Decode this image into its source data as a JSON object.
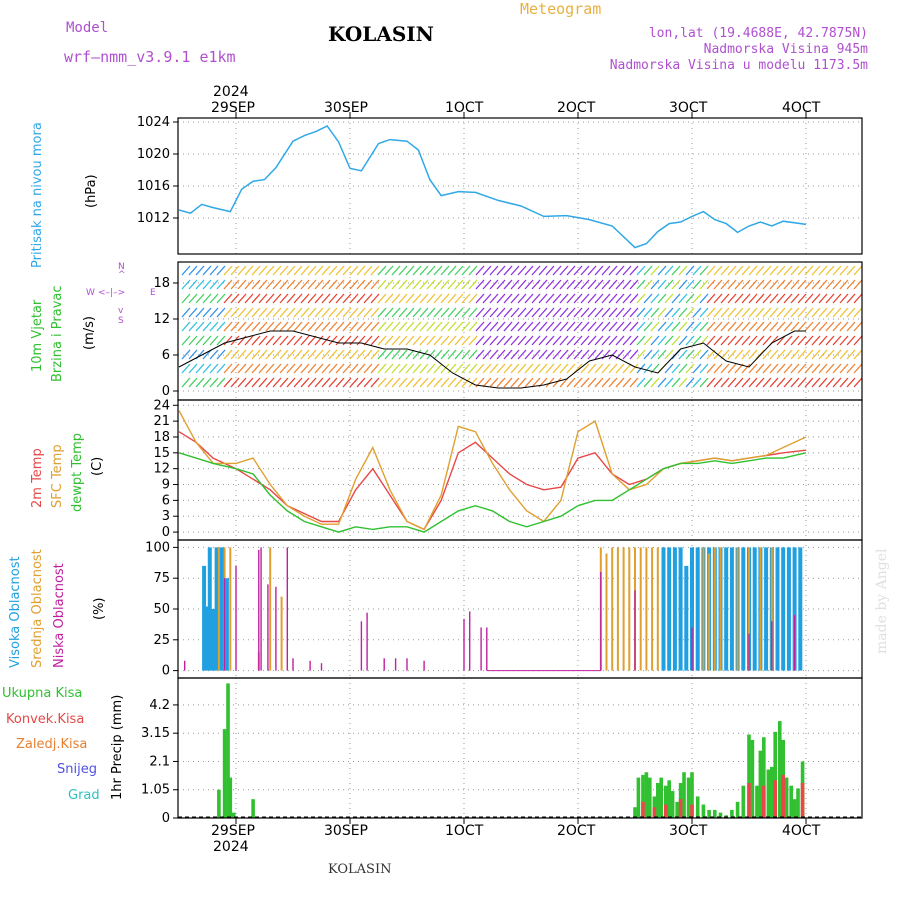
{
  "header": {
    "model_label": "Model",
    "model_name": "wrf—nmm_v3.9.1  e1km",
    "title": "KOLASIN",
    "meteogram": "Meteogram",
    "lonlat": "lon,lat (19.4688E, 42.7875N)",
    "altitude": "Nadmorska Visina 945m",
    "model_altitude": "Nadmorska Visina u modelu 1173.5m"
  },
  "dates": {
    "year": "2024",
    "labels": [
      "29SEP",
      "30SEP",
      "1OCT",
      "2OCT",
      "3OCT",
      "4OCT"
    ]
  },
  "footer": {
    "title": "KOLASIN",
    "watermark": "made by Angel"
  },
  "colors": {
    "pressure": "#30a8e8",
    "wind_speed": "#000000",
    "temp_2m": "#e84848",
    "temp_sfc": "#e0a030",
    "dewpoint": "#30c030",
    "cloud_high": "#20a0e0",
    "cloud_mid": "#e0a030",
    "cloud_low": "#c020a0",
    "precip_total": "#30c030",
    "precip_conv": "#e84848",
    "precip_freezing": "#e88030",
    "precip_snow": "#5050e0",
    "precip_hail": "#30c0c0"
  },
  "panel_labels": {
    "pressure": [
      "Pritisak na nivou mora",
      "(hPa)"
    ],
    "wind": [
      "10m Vjetar",
      "Brzina i Pravac",
      "(m/s)"
    ],
    "wind_compass": {
      "n": "N",
      "w": "W",
      "e": "E",
      "s": "S"
    },
    "temp": [
      "2m Temp",
      "SFC Temp",
      "dewpt Temp",
      "(C)"
    ],
    "cloud": [
      "Visoka Oblacnost",
      "Srednja Oblacnost",
      "Niska Oblacnost",
      "(%)"
    ],
    "precip": [
      "Ukupna Kisa",
      "Konvek.Kisa",
      "Zaledj.Kisa",
      "Snijeg",
      "Grad",
      "1hr Precip (mm)"
    ]
  },
  "chart_data": [
    {
      "type": "line",
      "name": "pressure",
      "ylabel": "(hPa)",
      "yticks": [
        1012,
        1016,
        1020,
        1024
      ],
      "ylim": [
        1007.5,
        1024.5
      ],
      "x_days": [
        0,
        0.1,
        0.2,
        0.3,
        0.45,
        0.55,
        0.65,
        0.75,
        0.85,
        1.0,
        1.1,
        1.2,
        1.3,
        1.4,
        1.5,
        1.6,
        1.75,
        1.85,
        2.0,
        2.1,
        2.2,
        2.3,
        2.45,
        2.6,
        2.8,
        3.0,
        3.2,
        3.4,
        3.6,
        3.8,
        4.0,
        4.1,
        4.2,
        4.3,
        4.4,
        4.5,
        4.6,
        4.7,
        4.8,
        4.9,
        5.0,
        5.1,
        5.2,
        5.3,
        5.5
      ],
      "y": [
        1013.0,
        1012.6,
        1013.7,
        1013.3,
        1012.8,
        1015.6,
        1016.6,
        1016.8,
        1018.3,
        1021.6,
        1022.3,
        1022.8,
        1023.5,
        1021.5,
        1018.2,
        1017.9,
        1021.3,
        1021.8,
        1021.6,
        1020.5,
        1016.8,
        1014.8,
        1015.3,
        1015.2,
        1014.2,
        1013.5,
        1012.2,
        1012.3,
        1011.8,
        1011.0,
        1008.3,
        1008.8,
        1010.3,
        1011.3,
        1011.5,
        1012.2,
        1012.8,
        1011.8,
        1011.3,
        1010.2,
        1011.0,
        1011.5,
        1011.0,
        1011.6,
        1011.2
      ]
    },
    {
      "type": "line",
      "name": "wind",
      "ylabel": "(m/s)",
      "yticks": [
        0,
        6,
        12,
        18
      ],
      "ylim": [
        -1.5,
        21.5
      ],
      "series": [
        {
          "name": "wind speed",
          "x_days": [
            0,
            0.2,
            0.4,
            0.6,
            0.8,
            1.0,
            1.2,
            1.4,
            1.6,
            1.8,
            2.0,
            2.2,
            2.4,
            2.6,
            2.8,
            3.0,
            3.2,
            3.4,
            3.6,
            3.8,
            4.0,
            4.2,
            4.4,
            4.6,
            4.8,
            5.0,
            5.2,
            5.4,
            5.5
          ],
          "y": [
            4,
            6,
            8,
            9,
            10,
            10,
            9,
            8,
            8,
            7,
            7,
            6,
            3,
            1,
            0.5,
            0.5,
            1,
            2,
            5,
            6,
            4,
            3,
            7,
            8,
            5,
            4,
            8,
            10,
            10
          ]
        }
      ]
    },
    {
      "type": "line",
      "name": "temperature",
      "ylabel": "(C)",
      "yticks": [
        0,
        3,
        6,
        9,
        12,
        15,
        18,
        21,
        24
      ],
      "ylim": [
        -1.5,
        25
      ],
      "x_days": [
        0,
        0.15,
        0.3,
        0.5,
        0.65,
        0.8,
        0.95,
        1.1,
        1.25,
        1.4,
        1.55,
        1.7,
        1.85,
        2.0,
        2.15,
        2.3,
        2.45,
        2.6,
        2.75,
        2.9,
        3.05,
        3.2,
        3.35,
        3.5,
        3.65,
        3.8,
        3.95,
        4.1,
        4.25,
        4.4,
        4.55,
        4.7,
        4.85,
        5.0,
        5.15,
        5.3,
        5.5
      ],
      "series": [
        {
          "name": "2m Temp",
          "y": [
            19,
            17,
            14,
            12,
            10,
            8,
            5,
            3.5,
            2,
            2,
            8,
            12,
            7,
            2,
            0.5,
            6,
            15,
            17,
            14,
            11,
            9,
            8,
            8.5,
            14,
            15,
            11,
            9,
            10,
            12,
            13,
            13.5,
            14,
            13.5,
            14,
            14.5,
            15,
            15.5
          ]
        },
        {
          "name": "SFC Temp",
          "y": [
            23,
            17,
            13,
            13,
            14,
            9,
            5,
            3,
            1.5,
            1.5,
            10,
            16,
            8,
            2,
            0.5,
            7,
            20,
            19,
            13,
            8,
            4,
            2,
            6,
            19,
            21,
            11,
            8,
            9,
            12,
            13,
            13.5,
            14,
            13.5,
            14,
            14.5,
            16,
            18
          ]
        },
        {
          "name": "dewpt Temp",
          "y": [
            15,
            14,
            13,
            12,
            11,
            7,
            4,
            2,
            1,
            0,
            1,
            0.5,
            1,
            1,
            0,
            2,
            4,
            5,
            4,
            2,
            1,
            2,
            3,
            5,
            6,
            6,
            8,
            10,
            12,
            13,
            13,
            13.5,
            13,
            13.5,
            14,
            14,
            15
          ]
        }
      ]
    },
    {
      "type": "bar",
      "name": "cloud cover",
      "ylabel": "(%)",
      "yticks": [
        0,
        25,
        50,
        75,
        100
      ],
      "ylim": [
        -6,
        106
      ],
      "series": [
        {
          "name": "Visoka Oblacnost",
          "x_days": [
            0.22,
            0.25,
            0.27,
            0.3,
            0.33,
            0.36,
            0.38,
            0.42,
            4.25,
            4.3,
            4.35,
            4.4,
            4.45,
            4.5,
            4.55,
            4.6,
            4.65,
            4.7,
            4.75,
            4.8,
            4.85,
            4.9,
            4.95,
            5.0,
            5.05,
            5.1,
            5.15,
            5.2,
            5.25,
            5.3,
            5.35,
            5.4,
            5.45
          ],
          "y": [
            85,
            52,
            100,
            50,
            100,
            100,
            100,
            75,
            100,
            100,
            100,
            100,
            85,
            100,
            100,
            100,
            100,
            100,
            100,
            100,
            100,
            100,
            100,
            100,
            100,
            100,
            100,
            100,
            100,
            100,
            100,
            100,
            100
          ]
        },
        {
          "name": "Srednja Oblacnost",
          "x_days": [
            0.35,
            0.4,
            0.45,
            0.7,
            0.8,
            0.9,
            3.7,
            3.75,
            3.8,
            3.85,
            3.9,
            3.95,
            4.0,
            4.05,
            4.1,
            4.15,
            4.2,
            4.6,
            4.65,
            4.7,
            4.75,
            4.9,
            5.0,
            5.1,
            5.2
          ],
          "y": [
            100,
            100,
            100,
            15,
            100,
            60,
            100,
            95,
            100,
            100,
            100,
            100,
            100,
            100,
            100,
            100,
            100,
            100,
            95,
            100,
            100,
            100,
            100,
            100,
            100
          ]
        },
        {
          "name": "Niska Oblacnost",
          "x_days": [
            0.05,
            0.4,
            0.5,
            0.7,
            0.72,
            0.78,
            0.85,
            0.95,
            1.0,
            1.15,
            1.25,
            1.6,
            1.65,
            1.8,
            1.9,
            2.0,
            2.15,
            2.5,
            2.55,
            2.65,
            2.7,
            3.7,
            4.0,
            4.5,
            5.0,
            5.2,
            5.4
          ],
          "y": [
            8,
            75,
            85,
            98,
            100,
            70,
            68,
            100,
            10,
            8,
            6,
            40,
            47,
            10,
            10,
            10,
            8,
            42,
            48,
            35,
            35,
            80,
            65,
            35,
            30,
            40,
            45
          ]
        }
      ]
    },
    {
      "type": "bar",
      "name": "precipitation",
      "ylabel": "1hr Precip (mm)",
      "yticks": [
        0,
        1.05,
        2.1,
        3.15,
        4.2
      ],
      "ylim": [
        0,
        5.2
      ],
      "series": [
        {
          "name": "Ukupna Kisa",
          "x_days": [
            0.35,
            0.4,
            0.43,
            0.45,
            0.48,
            0.65,
            4.0,
            4.03,
            4.07,
            4.1,
            4.13,
            4.17,
            4.2,
            4.23,
            4.27,
            4.3,
            4.33,
            4.37,
            4.4,
            4.43,
            4.47,
            4.5,
            4.55,
            4.6,
            4.65,
            4.7,
            4.75,
            4.8,
            4.85,
            4.9,
            4.95,
            5.0,
            5.03,
            5.07,
            5.1,
            5.13,
            5.17,
            5.2,
            5.23,
            5.27,
            5.3,
            5.33,
            5.37,
            5.4,
            5.43,
            5.47
          ],
          "y": [
            1.05,
            3.3,
            5.0,
            1.5,
            0.2,
            0.7,
            0.4,
            1.5,
            1.6,
            1.7,
            1.5,
            0.8,
            1.3,
            1.5,
            1.2,
            1.4,
            1.0,
            0.6,
            1.3,
            1.7,
            1.5,
            1.7,
            0.8,
            0.5,
            0.3,
            0.3,
            0.2,
            0.1,
            0.3,
            0.6,
            1.2,
            3.1,
            2.9,
            1.2,
            2.5,
            3.0,
            1.8,
            1.9,
            3.2,
            3.6,
            2.9,
            1.5,
            1.2,
            0.7,
            1.1,
            2.1
          ]
        },
        {
          "name": "Konvek.Kisa",
          "x_days": [
            4.07,
            4.17,
            4.27,
            4.4,
            4.5,
            5.0,
            5.13,
            5.23,
            5.3,
            5.47
          ],
          "y": [
            0.6,
            0.4,
            0.5,
            0.7,
            0.5,
            1.3,
            1.2,
            1.4,
            1.6,
            1.3
          ]
        },
        {
          "name": "Zaledj.Kisa",
          "x_days": [],
          "y": []
        },
        {
          "name": "Snijeg",
          "x_days": [],
          "y": []
        },
        {
          "name": "Grad",
          "x_days": [],
          "y": []
        }
      ]
    }
  ]
}
